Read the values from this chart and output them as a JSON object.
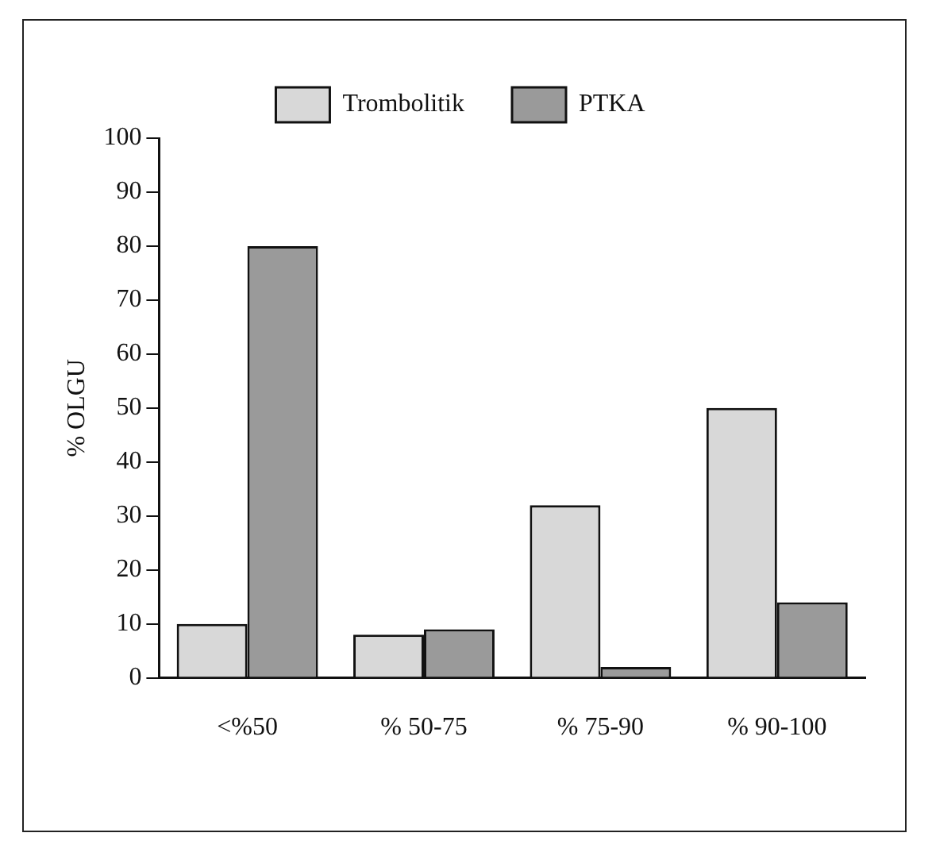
{
  "chart_data": {
    "type": "bar",
    "ylabel": "% OLGU",
    "categories": [
      "<%50",
      "% 50-75",
      "% 75-90",
      "% 90-100"
    ],
    "series": [
      {
        "name": "Trombolitik",
        "color": "#d8d8d8",
        "values": [
          10,
          8,
          32,
          50
        ]
      },
      {
        "name": "PTKA",
        "color": "#9a9a9a",
        "values": [
          80,
          9,
          2,
          14
        ]
      }
    ],
    "ylim": [
      0,
      100
    ],
    "yticks": [
      0,
      10,
      20,
      30,
      40,
      50,
      60,
      70,
      80,
      90,
      100
    ],
    "grid": false,
    "legend": "top"
  }
}
